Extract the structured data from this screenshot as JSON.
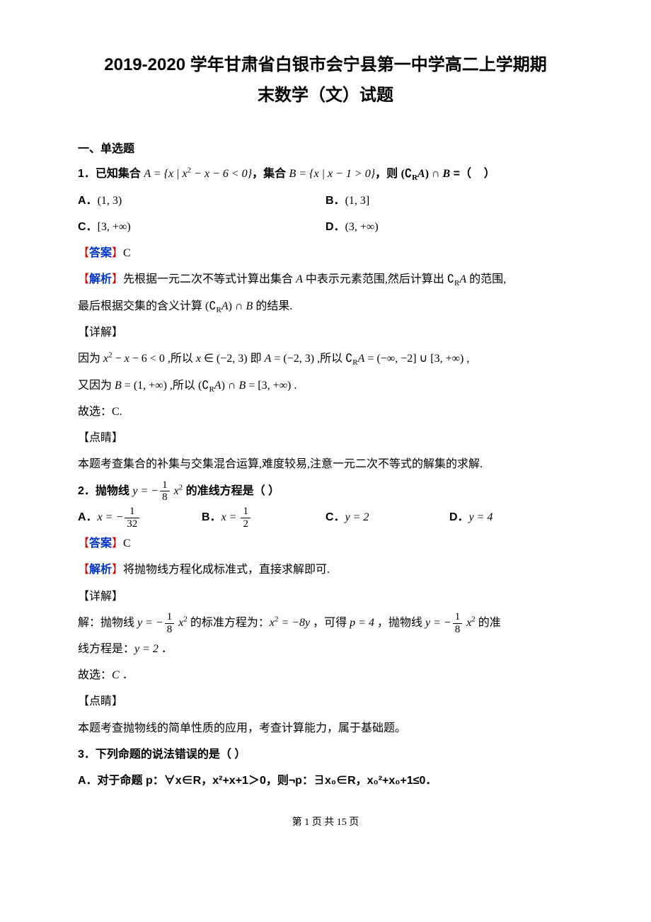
{
  "colors": {
    "text": "#000000",
    "link_blue": "#0033cc",
    "bracket_red": "#cc0000",
    "background": "#ffffff"
  },
  "typography": {
    "body_font": "SimSun",
    "bold_font": "SimHei",
    "math_font": "Times New Roman",
    "title_size_pt": 18,
    "body_size_pt": 12
  },
  "title_line1": "2019-2020 学年甘肃省白银市会宁县第一中学高二上学期期",
  "title_line2": "末数学（文）试题",
  "section1": "一、单选题",
  "q1": {
    "stem_prefix": "1．已知集合 ",
    "setA": "A = { x | x² − x − 6 < 0 }",
    "mid": "，集合 ",
    "setB": "B = { x | x − 1 > 0 }",
    "tail": "，则 (∁ᵣA) ∩ B =（    ）",
    "optA_label": "A．",
    "optA": "(1, 3)",
    "optB_label": "B．",
    "optB": "(1, 3]",
    "optC_label": "C．",
    "optC": "[3, +∞)",
    "optD_label": "D．",
    "optD": "(3, +∞)"
  },
  "answer_label": "【答案】",
  "analysis_label": "【解析】",
  "detail_label": "【详解】",
  "remark_label": "【点睛】",
  "q1_answer": "C",
  "q1_analysis": "先根据一元二次不等式计算出集合 A 中表示元素范围,然后计算出 ∁ᵣA 的范围,",
  "q1_analysis2": "最后根据交集的含义计算 (∁ᵣA) ∩ B 的结果.",
  "q1_detail1": "因为 x² − x − 6 < 0 ,所以 x ∈ (−2, 3) 即 A = (−2, 3) ,所以 ∁ᵣA = (−∞, −2] ∪ [3, +∞) ,",
  "q1_detail2": "又因为 B = (1, +∞) ,所以 (∁ᵣA) ∩ B = [3, +∞) .",
  "q1_detail3": "故选：C.",
  "q1_remark": "本题考查集合的补集与交集混合运算,难度较易,注意一元二次不等式的解集的求解.",
  "q2": {
    "stem_prefix": "2．抛物线 ",
    "equation_y": "y = −",
    "frac_num": "1",
    "frac_den": "8",
    "equation_x2": " x²",
    "stem_suffix": " 的准线方程是（    ）",
    "optA_label": "A．",
    "optA_x": "x = −",
    "optA_num": "1",
    "optA_den": "32",
    "optB_label": "B．",
    "optB_x": "x = ",
    "optB_num": "1",
    "optB_den": "2",
    "optC_label": "C．",
    "optC": "y = 2",
    "optD_label": "D．",
    "optD": "y = 4"
  },
  "q2_answer": "C",
  "q2_analysis": "将抛物线方程化成标准式，直接求解即可.",
  "q2_detail_prefix": "解：抛物线 ",
  "q2_detail_mid1": " 的标准方程为：",
  "q2_detail_std": "x² = −8y",
  "q2_detail_mid2": " ，可得 ",
  "q2_detail_p": "p = 4",
  "q2_detail_mid3": " ，抛物线 ",
  "q2_detail_suffix": " 的准",
  "q2_detail_line2a": "线方程是：",
  "q2_detail_line2b": "y = 2",
  "q2_detail_line2c": " ．",
  "q2_detail3": "故选：C ．",
  "q2_remark": "本题考查抛物线的简单性质的应用，考查计算能力，属于基础题。",
  "q3": {
    "stem": "3．下列命题的说法错误的是（    ）",
    "optA": "A．对于命题 p：∀x∈R，x²+x+1＞0，则¬p：∃x₀∈R，x₀²+x₀+1≤0．"
  },
  "footer": "第 1 页 共 15 页"
}
